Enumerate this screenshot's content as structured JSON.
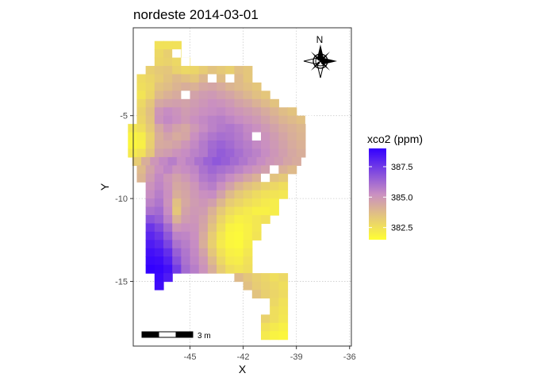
{
  "chart_data": {
    "type": "heatmap",
    "title": "nordeste 2014-03-01",
    "xlabel": "X",
    "ylabel": "Y",
    "xlim": [
      -48.2,
      -35.9
    ],
    "ylim": [
      -18.9,
      0.3
    ],
    "x_ticks": [
      -45,
      -42,
      -39,
      -36
    ],
    "x_tick_labels": [
      "-45",
      "-42",
      "-39",
      "-36"
    ],
    "y_ticks": [
      -5,
      -10,
      -15
    ],
    "y_tick_labels": [
      "-5",
      "-10",
      "-15"
    ],
    "grid": true,
    "grid_style": "dotted",
    "cell_size_deg": 0.5,
    "color_scale": {
      "low_color": "#ffff33",
      "mid_color": "#c98fc2",
      "high_color": "#3300ff",
      "range": [
        381.5,
        389.0
      ]
    },
    "legend": {
      "title": "xco2 (ppm)",
      "position": "right",
      "breaks": [
        382.5,
        385.0,
        387.5
      ],
      "break_labels": [
        "382.5",
        "385.0",
        "387.5"
      ]
    },
    "north_arrow": {
      "label": "N",
      "position": "top-right"
    },
    "scale_bar": {
      "label": "3 m",
      "position": "bottom-left"
    },
    "rows": [
      {
        "y": -0.75,
        "x0": -46.75,
        "values": [
          382.5,
          382.5,
          382.5
        ]
      },
      {
        "y": -1.25,
        "x0": -46.75,
        "values": [
          382.8,
          383.1,
          382.6
        ]
      },
      {
        "y": -1.75,
        "x0": -46.75,
        "values": [
          382.9,
          383.0,
          382.8,
          382.5
        ]
      },
      {
        "y": -2.25,
        "x0": -47.25,
        "values": [
          383.1,
          383.3,
          383.4,
          383.0,
          382.8,
          382.9,
          383.2,
          383.5,
          383.3,
          383.1,
          383.6,
          383.4
        ]
      },
      {
        "y": -2.75,
        "x0": -47.75,
        "values": [
          382.7,
          382.9,
          383.2,
          383.5,
          383.8,
          383.6,
          383.4,
          383.9,
          384.1,
          383.7,
          383.5,
          383.8,
          383.4
        ]
      },
      {
        "y": -3.25,
        "x0": -47.75,
        "values": [
          382.6,
          382.8,
          383.5,
          383.7,
          384.0,
          384.2,
          384.1,
          384.4,
          384.5,
          384.3,
          384.0,
          383.8,
          383.6,
          383.4
        ]
      },
      {
        "y": -3.75,
        "x0": -47.75,
        "values": [
          382.4,
          382.9,
          383.8,
          384.1,
          384.3,
          384.5,
          384.6,
          384.8,
          384.9,
          384.7,
          384.5,
          384.2,
          383.9,
          383.6,
          383.4
        ]
      },
      {
        "y": -4.25,
        "x0": -47.75,
        "values": [
          382.8,
          383.4,
          384.4,
          384.6,
          384.7,
          384.6,
          384.8,
          385.0,
          385.2,
          385.1,
          384.9,
          384.6,
          384.4,
          384.1,
          383.8,
          383.5
        ]
      },
      {
        "y": -4.75,
        "x0": -47.75,
        "values": [
          383.0,
          383.6,
          385.0,
          385.3,
          385.1,
          384.8,
          385.0,
          385.2,
          385.3,
          385.4,
          385.2,
          385.0,
          384.8,
          384.6,
          384.3,
          384.0,
          383.7,
          383.5
        ]
      },
      {
        "y": -5.25,
        "x0": -47.75,
        "values": [
          382.9,
          383.5,
          385.1,
          385.4,
          385.2,
          384.9,
          385.2,
          385.4,
          385.6,
          385.7,
          385.5,
          385.3,
          385.1,
          384.9,
          384.6,
          384.3,
          384.0,
          383.8,
          383.6
        ]
      },
      {
        "y": -5.75,
        "x0": -48.25,
        "values": [
          382.3,
          382.6,
          383.3,
          384.4,
          385.0,
          384.6,
          384.4,
          384.9,
          385.3,
          385.6,
          385.8,
          385.9,
          385.7,
          385.4,
          385.2,
          384.9,
          384.6,
          384.3,
          384.1,
          383.9
        ]
      },
      {
        "y": -6.25,
        "x0": -48.25,
        "values": [
          381.9,
          382.1,
          383.0,
          384.2,
          384.6,
          384.3,
          384.5,
          385.2,
          385.6,
          385.9,
          386.1,
          386.0,
          385.8,
          385.5,
          385.3,
          385.1,
          384.8,
          384.5,
          384.2,
          384.0
        ]
      },
      {
        "y": -6.75,
        "x0": -48.25,
        "values": [
          381.8,
          382.0,
          383.1,
          384.3,
          384.4,
          384.6,
          385.0,
          385.4,
          385.8,
          386.2,
          386.4,
          386.2,
          385.9,
          385.7,
          385.4,
          385.2,
          384.9,
          384.6,
          384.3,
          384.1
        ]
      },
      {
        "y": -7.25,
        "x0": -48.25,
        "values": [
          382.2,
          382.5,
          383.4,
          384.6,
          384.8,
          385.1,
          385.3,
          385.6,
          385.8,
          386.3,
          386.6,
          386.4,
          386.1,
          385.8,
          385.6,
          385.3,
          385.0,
          384.7,
          384.4,
          384.2
        ]
      },
      {
        "y": -7.75,
        "x0": -48.0,
        "values": [
          383.2,
          384.2,
          385.0,
          385.4,
          385.7,
          385.3,
          385.6,
          386.0,
          386.4,
          386.7,
          386.5,
          386.2,
          385.9,
          385.6,
          385.3,
          385.0,
          384.8,
          384.5,
          384.3
        ]
      },
      {
        "y": -8.25,
        "x0": -47.75,
        "values": [
          383.8,
          384.6,
          385.2,
          385.5,
          385.1,
          385.3,
          385.5,
          386.0,
          386.3,
          386.1,
          385.9,
          385.6,
          385.3,
          385.0,
          384.7,
          384.4,
          384.1,
          383.8
        ]
      },
      {
        "y": -8.75,
        "x0": -47.75,
        "values": [
          384.0,
          384.8,
          385.4,
          385.0,
          384.6,
          384.9,
          385.3,
          385.8,
          386.0,
          385.7,
          385.3,
          384.9,
          384.5,
          384.1,
          383.8,
          383.5,
          383.3
        ]
      },
      {
        "y": -9.25,
        "x0": -47.25,
        "values": [
          385.1,
          385.5,
          385.1,
          384.4,
          384.6,
          385.0,
          385.5,
          385.7,
          385.2,
          384.6,
          384.0,
          383.6,
          383.3,
          383.0,
          382.8,
          382.6
        ]
      },
      {
        "y": -9.75,
        "x0": -47.25,
        "values": [
          385.3,
          385.7,
          385.2,
          384.2,
          384.5,
          384.9,
          385.2,
          385.3,
          384.6,
          383.8,
          383.3,
          383.0,
          382.7,
          382.5,
          382.4,
          382.3
        ]
      },
      {
        "y": -10.25,
        "x0": -47.25,
        "values": [
          385.6,
          385.9,
          385.1,
          383.6,
          384.4,
          384.8,
          385.0,
          384.7,
          383.9,
          383.2,
          382.9,
          382.6,
          382.4,
          382.2,
          382.1
        ]
      },
      {
        "y": -10.75,
        "x0": -47.25,
        "values": [
          386.0,
          386.2,
          385.3,
          383.4,
          384.6,
          384.9,
          384.8,
          384.1,
          383.3,
          382.7,
          382.4,
          382.2,
          382.0,
          382.0,
          382.1
        ]
      },
      {
        "y": -11.25,
        "x0": -47.25,
        "values": [
          386.8,
          386.5,
          385.6,
          384.1,
          384.8,
          385.0,
          384.6,
          383.8,
          382.9,
          382.3,
          382.0,
          382.1,
          382.3,
          382.5
        ]
      },
      {
        "y": -11.75,
        "x0": -47.25,
        "values": [
          387.6,
          387.1,
          386.2,
          385.0,
          385.2,
          385.1,
          384.5,
          383.5,
          382.6,
          381.9,
          381.8,
          382.0,
          382.3
        ]
      },
      {
        "y": -12.25,
        "x0": -47.25,
        "values": [
          388.0,
          387.6,
          386.7,
          385.6,
          385.5,
          385.2,
          384.3,
          383.2,
          382.3,
          381.8,
          381.7,
          382.0,
          382.4
        ]
      },
      {
        "y": -12.75,
        "x0": -47.25,
        "values": [
          388.3,
          388.0,
          387.2,
          386.0,
          385.7,
          385.3,
          384.2,
          383.1,
          382.2,
          381.8,
          381.7,
          382.1
        ]
      },
      {
        "y": -13.25,
        "x0": -47.25,
        "values": [
          388.6,
          388.4,
          387.8,
          386.5,
          385.9,
          385.4,
          384.6,
          383.4,
          382.5,
          382.0,
          381.9,
          382.3
        ]
      },
      {
        "y": -13.75,
        "x0": -47.25,
        "values": [
          388.8,
          388.7,
          388.2,
          386.9,
          386.0,
          385.5,
          384.9,
          383.8,
          382.8,
          382.2,
          382.1,
          382.5
        ]
      },
      {
        "y": -14.25,
        "x0": -47.25,
        "values": [
          389.0,
          388.9,
          388.6,
          387.4,
          386.2,
          385.7,
          385.1,
          384.2,
          383.2,
          382.6,
          382.4,
          382.6
        ]
      },
      {
        "y": -14.75,
        "x0": -46.75,
        "values": [
          388.8,
          388.3
        ]
      },
      {
        "y": -14.75,
        "x0": -42.25,
        "values": [
          383.8,
          383.4,
          383.1,
          382.9,
          382.6,
          382.8
        ]
      },
      {
        "y": -15.25,
        "x0": -46.75,
        "values": [
          388.7
        ]
      },
      {
        "y": -15.25,
        "x0": -41.75,
        "values": [
          383.6,
          383.2,
          383.0,
          382.8,
          382.6
        ]
      },
      {
        "y": -15.75,
        "x0": -41.25,
        "values": [
          383.5,
          383.1,
          382.9,
          382.7
        ]
      },
      {
        "y": -16.25,
        "x0": -40.25,
        "values": [
          382.8,
          382.5
        ]
      },
      {
        "y": -16.75,
        "x0": -40.25,
        "values": [
          382.6,
          382.4
        ]
      },
      {
        "y": -17.25,
        "x0": -40.75,
        "values": [
          383.0,
          382.6,
          382.3
        ]
      },
      {
        "y": -17.75,
        "x0": -40.75,
        "values": [
          382.5,
          382.2,
          382.0
        ]
      },
      {
        "y": -18.25,
        "x0": -40.75,
        "values": [
          382.2,
          381.9,
          381.8
        ]
      }
    ],
    "missing_cells": [
      [
        -45.75,
        -1.25
      ],
      [
        -45.25,
        -1.75
      ],
      [
        -43.75,
        -2.75
      ],
      [
        -42.75,
        -2.75
      ],
      [
        -39.25,
        -3.25
      ],
      [
        -37.75,
        -3.75
      ],
      [
        -45.25,
        -3.75
      ],
      [
        -38.25,
        -5.25
      ],
      [
        -37.25,
        -5.75
      ],
      [
        -41.25,
        -6.25
      ],
      [
        -40.25,
        -8.25
      ],
      [
        -40.75,
        -8.75
      ]
    ]
  }
}
